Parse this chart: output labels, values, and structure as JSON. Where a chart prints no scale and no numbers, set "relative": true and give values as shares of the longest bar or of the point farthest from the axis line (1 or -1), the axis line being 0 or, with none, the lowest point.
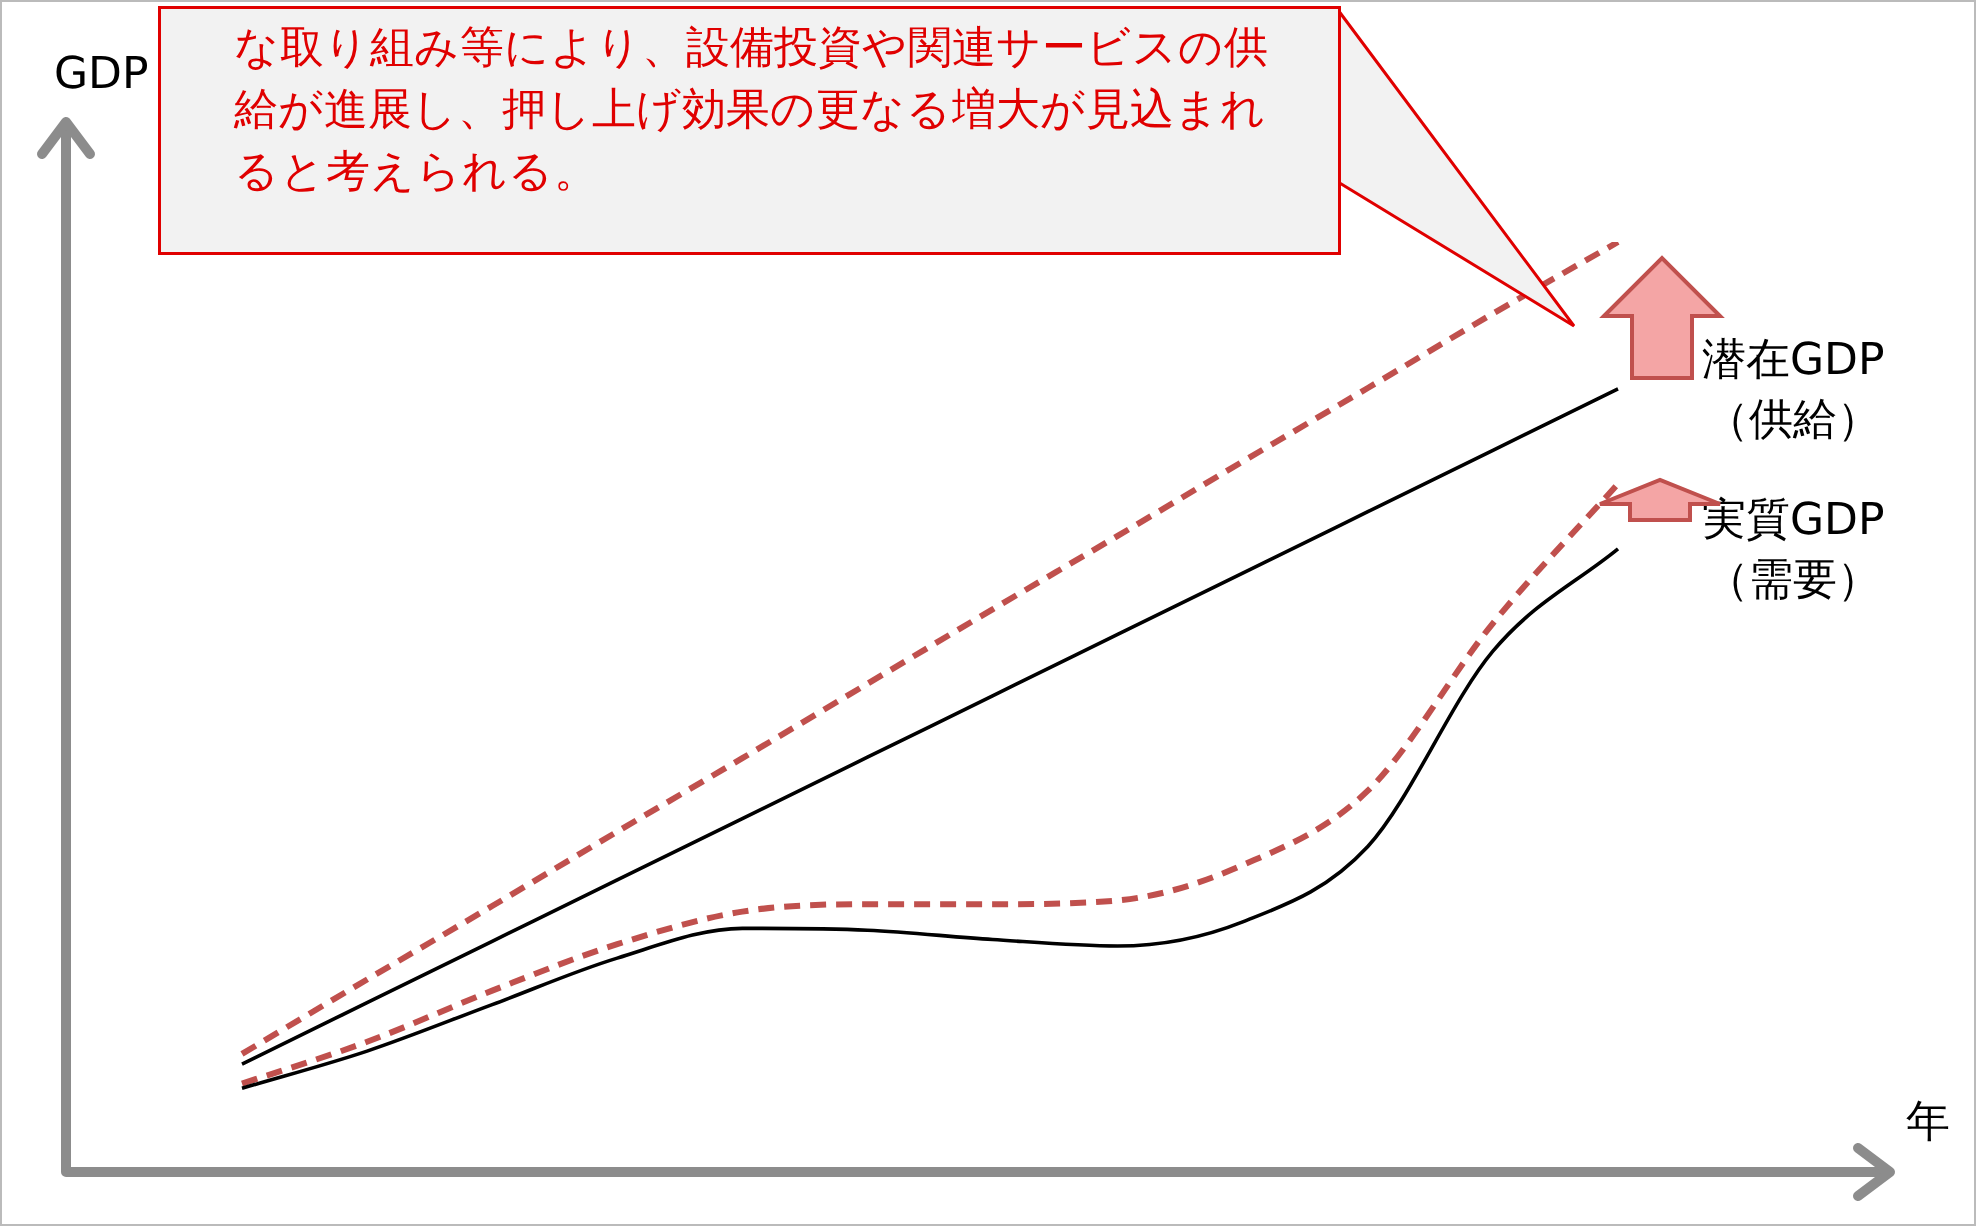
{
  "chart_data": {
    "type": "line",
    "relative": true,
    "ylabel": "GDP",
    "legend": false,
    "marker": "none",
    "categories": [
      null,
      null,
      null,
      null,
      null,
      null,
      null,
      null,
      null,
      null,
      null,
      null
    ],
    "series": [
      {
        "name": "潜在GDP\n（供給）",
        "color": "#000000",
        "line_style": "solid",
        "values": [
          0.116,
          0.182,
          0.248,
          0.314,
          0.38,
          0.446,
          0.512,
          0.578,
          0.644,
          0.71,
          0.776,
          0.842
        ]
      },
      {
        "color": "#c0504d",
        "line_style": "dashed",
        "values": [
          0.127,
          0.207,
          0.286,
          0.366,
          0.445,
          0.525,
          0.605,
          0.684,
          0.764,
          0.843,
          0.923,
          1.0
        ]
      },
      {
        "name": "実質GDP\n（需要）",
        "color": "#000000",
        "line_style": "solid",
        "values": [
          0.09,
          0.13,
          0.18,
          0.23,
          0.262,
          0.26,
          0.25,
          0.243,
          0.269,
          0.35,
          0.56,
          0.67
        ]
      },
      {
        "color": "#c0504d",
        "line_style": "dashed",
        "values": [
          0.095,
          0.14,
          0.195,
          0.245,
          0.28,
          0.288,
          0.288,
          0.292,
          0.33,
          0.41,
          0.59,
          0.74
        ]
      }
    ],
    "annotations": [
      "な取り組み等により、設備投資や関連サービスの供給が進展し、押し上げ効果の更なる増大が見込まれると考えられる。",
      "年"
    ]
  }
}
